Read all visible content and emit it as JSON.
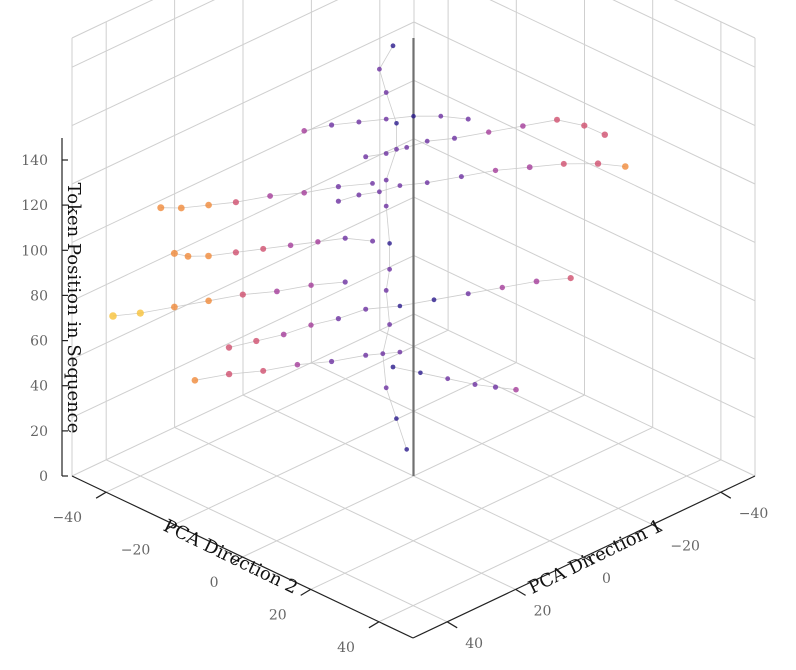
{
  "chart_data": {
    "type": "scatter",
    "projection": "3d",
    "title": "",
    "xlabel": "PCA Direction 1",
    "ylabel": "PCA Direction 2",
    "zlabel": "Token Position in Sequence",
    "xlim": [
      -50,
      50
    ],
    "ylim": [
      -50,
      50
    ],
    "zlim": [
      0,
      150
    ],
    "x_ticks": [
      "−40",
      "−20",
      "0",
      "20",
      "40"
    ],
    "y_ticks": [
      "−40",
      "−20",
      "0",
      "20",
      "40"
    ],
    "z_ticks": [
      "0",
      "20",
      "40",
      "60",
      "80",
      "100",
      "120",
      "140"
    ],
    "grid": true,
    "colormap": [
      "#2a1a8c",
      "#6b2fa0",
      "#a43c9a",
      "#d04f6e",
      "#f08a3a",
      "#f7c23a"
    ],
    "line_color": "#c8c8c8",
    "vertical_reference_line": {
      "x": 0,
      "y": 0,
      "z_range": [
        0,
        150
      ],
      "color": "#707070"
    },
    "series": [
      {
        "x": [
          0,
          1,
          2,
          1,
          0,
          -1,
          1,
          2,
          0,
          1,
          -1,
          0,
          1,
          2,
          0
        ],
        "y": [
          -2,
          -4,
          -6,
          -8,
          -7,
          -9,
          -6,
          -5,
          -8,
          -7,
          -6,
          -5,
          -7,
          -8,
          -6
        ],
        "z": [
          8,
          18,
          28,
          38,
          48,
          58,
          68,
          78,
          88,
          98,
          108,
          118,
          128,
          136,
          144
        ]
      },
      {
        "x": [
          -36,
          -34,
          -30,
          -24,
          -18,
          -12,
          -8,
          -4,
          0,
          4
        ],
        "y": [
          20,
          16,
          12,
          8,
          4,
          0,
          -4,
          -6,
          -8,
          -10
        ],
        "z": [
          108,
          110,
          112,
          111,
          110,
          109,
          108,
          107,
          106,
          106
        ]
      },
      {
        "x": [
          -40,
          -36,
          -30,
          -24,
          -18,
          -12,
          -6,
          -2,
          2,
          6,
          10
        ],
        "y": [
          22,
          18,
          14,
          10,
          6,
          2,
          -2,
          -6,
          -8,
          -10,
          -12
        ],
        "z": [
          96,
          97,
          98,
          98,
          98,
          97,
          96,
          95,
          94,
          94,
          93
        ]
      },
      {
        "x": [
          -30,
          -24,
          -18,
          -12,
          -6,
          0,
          6,
          12,
          18,
          24,
          30,
          36
        ],
        "y": [
          16,
          12,
          8,
          4,
          0,
          -4,
          -8,
          -10,
          -12,
          -14,
          -16,
          -18
        ],
        "z": [
          60,
          60,
          59,
          58,
          57,
          56,
          56,
          55,
          55,
          54,
          54,
          54
        ]
      },
      {
        "x": [
          2,
          6,
          12,
          18,
          24,
          30,
          36,
          40,
          42
        ],
        "y": [
          -10,
          -14,
          -16,
          -18,
          -20,
          -22,
          -24,
          -26,
          -28
        ],
        "z": [
          76,
          77,
          78,
          79,
          80,
          81,
          82,
          83,
          84
        ]
      },
      {
        "x": [
          4,
          10,
          16,
          22,
          28,
          32,
          36,
          38
        ],
        "y": [
          -8,
          -12,
          -16,
          -20,
          -24,
          -28,
          -32,
          -36
        ],
        "z": [
          98,
          98,
          97,
          97,
          96,
          95,
          94,
          93
        ]
      },
      {
        "x": [
          -2,
          4,
          10,
          16,
          22,
          28,
          34
        ],
        "y": [
          -6,
          -10,
          -14,
          -18,
          -22,
          -26,
          -30
        ],
        "z": [
          38,
          38,
          37,
          37,
          36,
          36,
          35
        ]
      },
      {
        "x": [
          -20,
          -16,
          -12,
          -8,
          -4,
          0
        ],
        "y": [
          10,
          8,
          6,
          2,
          -2,
          -6
        ],
        "z": [
          24,
          26,
          28,
          30,
          32,
          34
        ]
      },
      {
        "x": [
          6,
          12,
          18,
          24,
          30,
          36,
          42,
          46
        ],
        "y": [
          -14,
          -18,
          -22,
          -26,
          -30,
          -34,
          -38,
          -42
        ],
        "z": [
          62,
          62,
          61,
          61,
          60,
          59,
          58,
          57
        ]
      },
      {
        "x": [
          -10,
          -6,
          -2,
          2,
          6,
          10,
          14
        ],
        "y": [
          6,
          2,
          -2,
          -6,
          -10,
          -14,
          -18
        ],
        "z": [
          120,
          121,
          121,
          120,
          119,
          118,
          116
        ]
      }
    ]
  }
}
